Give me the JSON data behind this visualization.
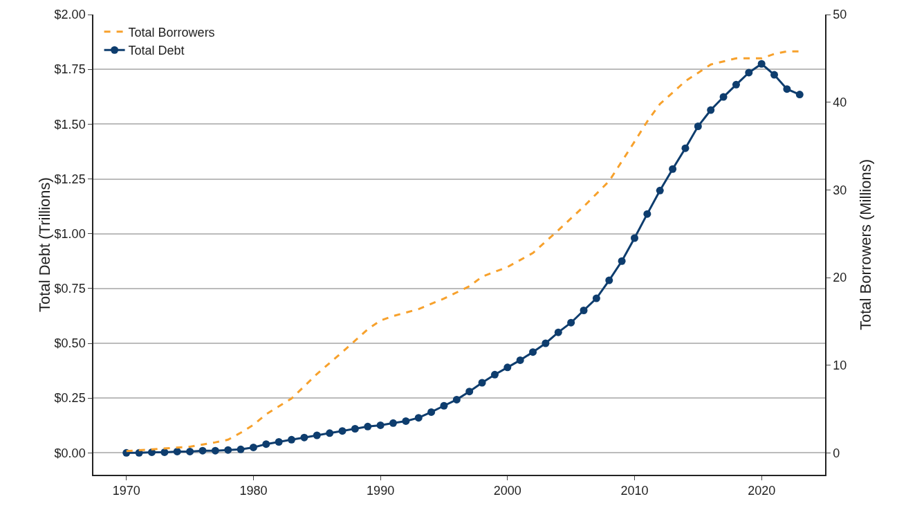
{
  "chart_data": {
    "type": "line",
    "ylabel": "Total Debt (Trillions)",
    "y2label": "Total Borrowers (Millions)",
    "xlim": [
      1967.4,
      2025
    ],
    "xticks": [
      1970,
      1980,
      1990,
      2000,
      2010,
      2020
    ],
    "ylim": [
      -0.1,
      2.0
    ],
    "yticks": [
      {
        "value": 0,
        "label": "$0.00"
      },
      {
        "value": 0.25,
        "label": "$0.25"
      },
      {
        "value": 0.5,
        "label": "$0.50"
      },
      {
        "value": 0.75,
        "label": "$0.75"
      },
      {
        "value": 1.0,
        "label": "$1.00"
      },
      {
        "value": 1.25,
        "label": "$1.25"
      },
      {
        "value": 1.5,
        "label": "$1.50"
      },
      {
        "value": 1.75,
        "label": "$1.75"
      },
      {
        "value": 2.0,
        "label": "$2.00"
      }
    ],
    "y2lim": [
      -2.5,
      50
    ],
    "y2ticks": [
      0,
      10,
      20,
      30,
      40,
      50
    ],
    "grid": "y",
    "legend": "top left",
    "series": [
      {
        "name": "Total Borrowers",
        "color": "#f7a12c",
        "axis": "y2",
        "line_style": "dashed",
        "marker": "none",
        "x": [
          1970,
          1972,
          1975,
          1977,
          1978,
          1979,
          1980,
          1981,
          1983,
          1985,
          1987,
          1989,
          1990,
          1991,
          1993,
          1995,
          1997,
          1998,
          2000,
          2002,
          2004,
          2006,
          2008,
          2010,
          2011,
          2012,
          2014,
          2016,
          2018,
          2020,
          2021,
          2022,
          2023
        ],
        "values": [
          0.2,
          0.4,
          0.7,
          1.2,
          1.5,
          2.3,
          3.2,
          4.4,
          6.2,
          9.0,
          11.5,
          14.1,
          15.1,
          15.6,
          16.4,
          17.6,
          19.0,
          20.1,
          21.2,
          22.8,
          25.4,
          28.1,
          31.0,
          35.5,
          37.8,
          39.8,
          42.4,
          44.3,
          45.0,
          45.0,
          45.5,
          45.8,
          45.8
        ]
      },
      {
        "name": "Total Debt",
        "color": "#0e3d6e",
        "line_style": "solid",
        "marker": "circle",
        "x": [
          1970,
          1971,
          1972,
          1973,
          1974,
          1975,
          1976,
          1977,
          1978,
          1979,
          1980,
          1981,
          1982,
          1983,
          1984,
          1985,
          1986,
          1987,
          1988,
          1989,
          1990,
          1991,
          1992,
          1993,
          1994,
          1995,
          1996,
          1997,
          1998,
          1999,
          2000,
          2001,
          2002,
          2003,
          2004,
          2005,
          2006,
          2007,
          2008,
          2009,
          2010,
          2011,
          2012,
          2013,
          2014,
          2015,
          2016,
          2017,
          2018,
          2019,
          2020,
          2021,
          2022,
          2023
        ],
        "values": [
          0,
          0,
          0.003,
          0.003,
          0.006,
          0.006,
          0.01,
          0.01,
          0.013,
          0.016,
          0.025,
          0.04,
          0.05,
          0.06,
          0.07,
          0.08,
          0.09,
          0.1,
          0.11,
          0.12,
          0.126,
          0.136,
          0.145,
          0.16,
          0.186,
          0.215,
          0.243,
          0.28,
          0.32,
          0.357,
          0.39,
          0.423,
          0.46,
          0.5,
          0.55,
          0.594,
          0.65,
          0.705,
          0.787,
          0.875,
          0.98,
          1.09,
          1.197,
          1.295,
          1.39,
          1.49,
          1.564,
          1.624,
          1.68,
          1.735,
          1.775,
          1.725,
          1.66,
          1.635
        ]
      }
    ]
  }
}
